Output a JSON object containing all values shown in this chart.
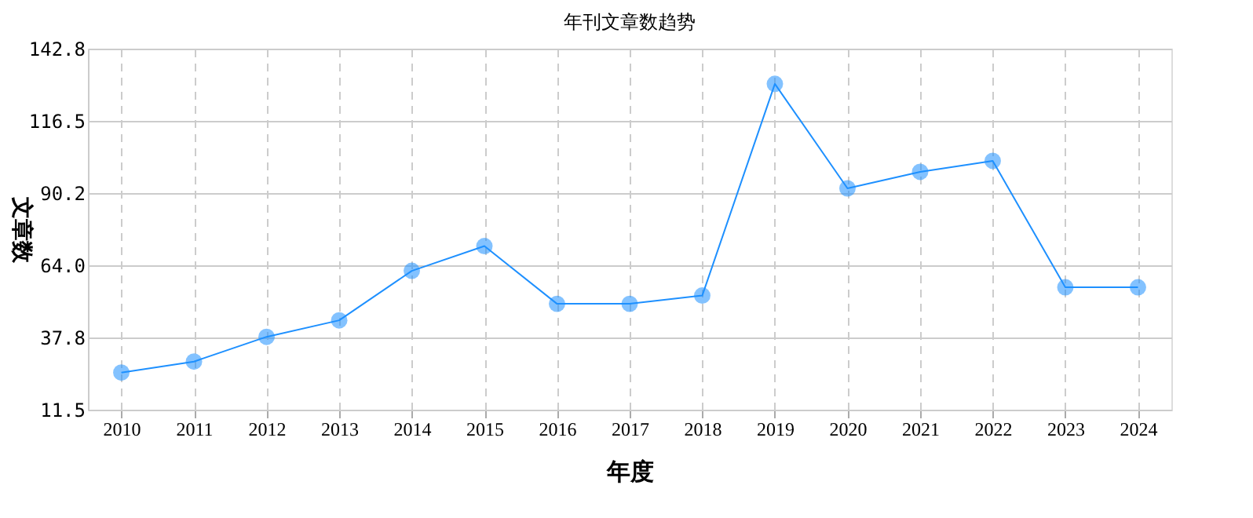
{
  "chart_data": {
    "type": "line",
    "title": "年刊文章数趋势",
    "xlabel": "年度",
    "ylabel": "文章数",
    "categories": [
      "2010",
      "2011",
      "2012",
      "2013",
      "2014",
      "2015",
      "2016",
      "2017",
      "2018",
      "2019",
      "2020",
      "2021",
      "2022",
      "2023",
      "2024"
    ],
    "series": [
      {
        "color": "#1e90ff",
        "values": [
          25,
          29,
          38,
          44,
          62,
          71,
          50,
          50,
          53,
          130,
          92,
          98,
          102,
          56,
          56
        ]
      }
    ],
    "ylim": [
      11.5,
      142.8
    ],
    "yticks": [
      {
        "value": 11.5,
        "label": "11.5"
      },
      {
        "value": 37.8,
        "label": "37.8"
      },
      {
        "value": 64,
        "label": "64.0"
      },
      {
        "value": 90.2,
        "label": "90.2"
      },
      {
        "value": 116.5,
        "label": "116.5"
      },
      {
        "value": 142.8,
        "label": "142.8"
      }
    ],
    "grid": true,
    "marker": "circle",
    "line_style": "solid"
  }
}
